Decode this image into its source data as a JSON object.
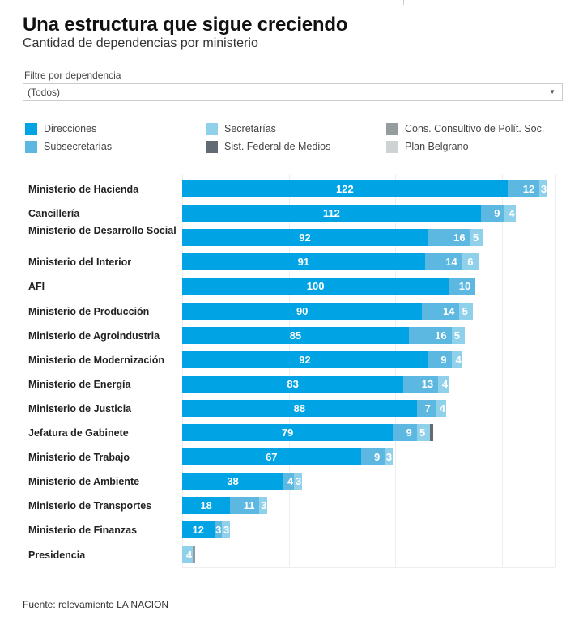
{
  "header": {
    "title": "Una estructura que sigue creciendo",
    "subtitle": "Cantidad de dependencias por ministerio"
  },
  "filter": {
    "label": "Filtre por dependencia",
    "selected": "(Todos)",
    "caret_icon": "▼"
  },
  "legend": [
    {
      "name": "Direcciones",
      "color": "#00a3e4"
    },
    {
      "name": "Subsecretarías",
      "color": "#5cb8e0"
    },
    {
      "name": "Secretarías",
      "color": "#8fd0eb"
    },
    {
      "name": "Sist. Federal de Medios",
      "color": "#626b73"
    },
    {
      "name": "Cons. Consultivo de Polít. Soc.",
      "color": "#959c9e"
    },
    {
      "name": "Plan Belgrano",
      "color": "#cfd2d3"
    }
  ],
  "footer": {
    "source": "Fuente: relevamiento LA NACION"
  },
  "chart_data": {
    "type": "bar",
    "orientation": "horizontal",
    "stacked": true,
    "title": "Una estructura que sigue creciendo",
    "subtitle": "Cantidad de dependencias por ministerio",
    "xlabel": "",
    "ylabel": "",
    "xlim": [
      0,
      140
    ],
    "grid": true,
    "grid_step": 20,
    "legend_position": "top",
    "categories": [
      "Ministerio de Hacienda",
      "Cancillería",
      "Ministerio de Desarrollo Social",
      "Ministerio del Interior",
      "AFI",
      "Ministerio de Producción",
      "Ministerio de Agroindustria",
      "Ministerio de Modernización",
      "Ministerio de Energía",
      "Ministerio de Justicia",
      "Jefatura de Gabinete",
      "Ministerio de Trabajo",
      "Ministerio de Ambiente",
      "Ministerio de Transportes",
      "Ministerio de Finanzas",
      "Presidencia"
    ],
    "series": [
      {
        "name": "Direcciones",
        "color": "#00a3e4",
        "values": [
          122,
          112,
          92,
          91,
          100,
          90,
          85,
          92,
          83,
          88,
          79,
          67,
          38,
          18,
          12,
          0
        ]
      },
      {
        "name": "Subsecretarías",
        "color": "#5cb8e0",
        "values": [
          12,
          9,
          16,
          14,
          10,
          14,
          16,
          9,
          13,
          7,
          9,
          9,
          4,
          11,
          3,
          0
        ]
      },
      {
        "name": "Secretarías",
        "color": "#8fd0eb",
        "values": [
          3,
          4,
          5,
          6,
          0,
          5,
          5,
          4,
          4,
          4,
          5,
          3,
          3,
          3,
          3,
          4
        ]
      },
      {
        "name": "Sist. Federal de Medios",
        "color": "#626b73",
        "values": [
          0,
          0,
          0,
          0,
          0,
          0,
          0,
          0,
          0,
          0,
          1,
          0,
          0,
          0,
          0,
          0
        ]
      },
      {
        "name": "Cons. Consultivo de Polít. Soc.",
        "color": "#959c9e",
        "values": [
          0,
          0,
          0,
          0,
          0,
          0,
          0,
          0,
          0,
          0,
          0,
          0,
          0,
          0,
          0,
          1
        ]
      },
      {
        "name": "Plan Belgrano",
        "color": "#cfd2d3",
        "values": [
          0,
          0,
          0,
          0,
          0,
          0,
          0,
          0,
          0,
          0,
          0,
          0,
          0,
          0,
          0,
          0
        ]
      }
    ]
  }
}
